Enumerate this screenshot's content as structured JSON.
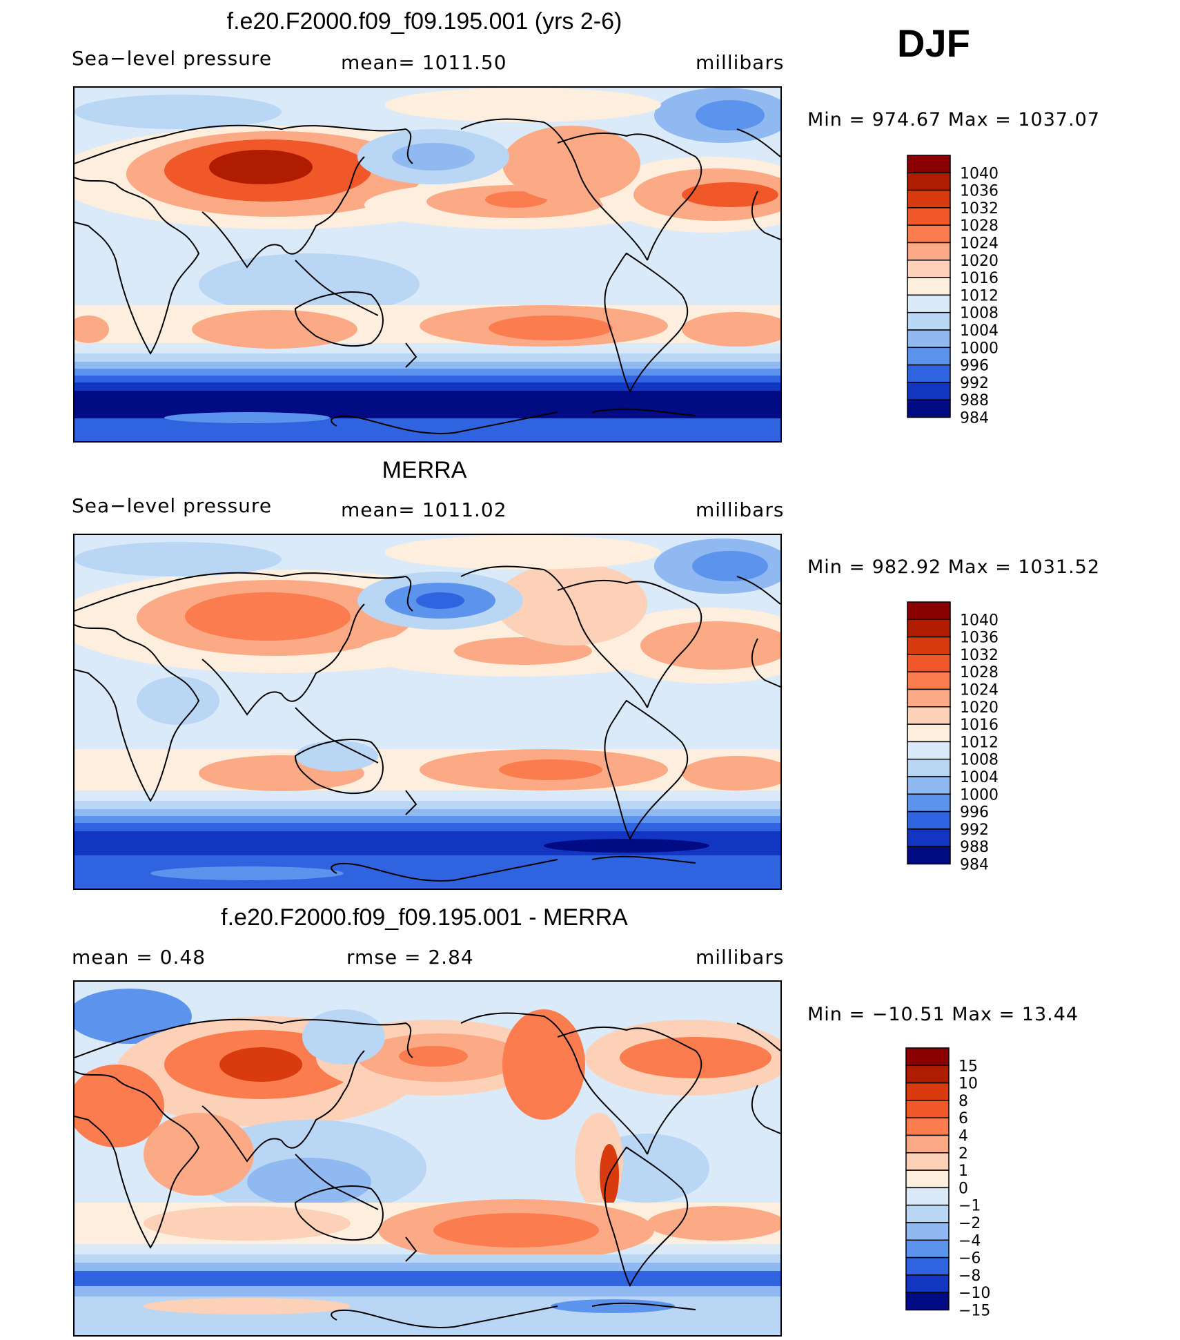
{
  "season": "DJF",
  "chart_data": [
    {
      "type": "heatmap",
      "title": "f.e20.F2000.f09_f09.195.001 (yrs 2-6)",
      "left_label": "Sea−level pressure",
      "center_label": "mean=  1011.50",
      "units": "millibars",
      "minmax": "Min  =  974.67  Max  =  1037.07",
      "levels": [
        "1040",
        "1036",
        "1032",
        "1028",
        "1024",
        "1020",
        "1016",
        "1012",
        "1008",
        "1004",
        "1000",
        "996",
        "992",
        "988",
        "984"
      ],
      "colors": [
        "#8b0000",
        "#b01c00",
        "#d93a0e",
        "#f0582a",
        "#fb7d4f",
        "#fcaa86",
        "#fdd1b8",
        "#fdeede",
        "#dbeaf8",
        "#b9d6f4",
        "#8fb9f0",
        "#5c93ec",
        "#2f63e0",
        "#1236c2",
        "#000b84"
      ]
    },
    {
      "type": "heatmap",
      "title": "MERRA",
      "left_label": "Sea−level pressure",
      "center_label": "mean=  1011.02",
      "units": "millibars",
      "minmax": "Min  =  982.92  Max  =  1031.52",
      "levels": [
        "1040",
        "1036",
        "1032",
        "1028",
        "1024",
        "1020",
        "1016",
        "1012",
        "1008",
        "1004",
        "1000",
        "996",
        "992",
        "988",
        "984"
      ],
      "colors": [
        "#8b0000",
        "#b01c00",
        "#d93a0e",
        "#f0582a",
        "#fb7d4f",
        "#fcaa86",
        "#fdd1b8",
        "#fdeede",
        "#dbeaf8",
        "#b9d6f4",
        "#8fb9f0",
        "#5c93ec",
        "#2f63e0",
        "#1236c2",
        "#000b84"
      ]
    },
    {
      "type": "heatmap",
      "title": "f.e20.F2000.f09_f09.195.001 - MERRA",
      "left_label": "mean =     0.48",
      "center_label": "rmse =     2.84",
      "units": "millibars",
      "minmax": "Min  =  −10.51  Max  =    13.44",
      "levels": [
        "15",
        "10",
        "8",
        "6",
        "4",
        "2",
        "1",
        "0",
        "−1",
        "−2",
        "−4",
        "−6",
        "−8",
        "−10",
        "−15"
      ],
      "colors": [
        "#8b0000",
        "#b01c00",
        "#d93a0e",
        "#f0582a",
        "#fb7d4f",
        "#fcaa86",
        "#fdd1b8",
        "#fdeede",
        "#dbeaf8",
        "#b9d6f4",
        "#8fb9f0",
        "#5c93ec",
        "#2f63e0",
        "#1236c2",
        "#000b84"
      ]
    }
  ]
}
